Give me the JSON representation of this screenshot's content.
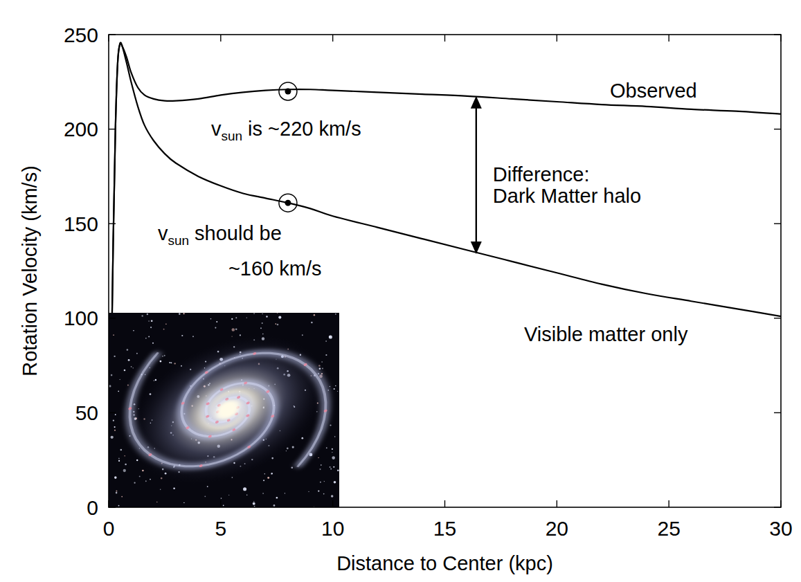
{
  "chart_data": {
    "type": "line",
    "x": [
      0,
      0.1,
      0.2,
      0.3,
      0.4,
      0.5,
      0.6,
      0.8,
      1.0,
      1.3,
      1.6,
      2.0,
      2.5,
      3,
      4,
      5,
      6,
      7,
      8,
      9,
      10,
      12,
      14,
      16,
      18,
      20,
      22,
      24,
      26,
      28,
      30
    ],
    "series": [
      {
        "name": "Observed",
        "color": "#000000",
        "values": [
          0,
          60,
          140,
          200,
          235,
          245,
          244,
          238,
          230,
          222,
          218,
          216,
          215,
          215,
          216,
          218,
          219.5,
          220.5,
          221,
          221,
          220.5,
          219.5,
          218.5,
          217.5,
          216,
          214.5,
          213,
          212,
          210.5,
          209.5,
          208
        ]
      },
      {
        "name": "Visible matter only",
        "color": "#000000",
        "values": [
          0,
          60,
          140,
          200,
          235,
          245,
          244,
          235,
          225,
          212,
          202,
          194,
          187,
          182,
          175,
          170,
          166,
          163.5,
          161,
          158,
          154,
          148,
          142,
          136,
          130,
          124,
          118,
          113,
          109,
          105,
          101
        ]
      }
    ],
    "xlabel": "Distance to Center (kpc)",
    "ylabel": "Rotation Velocity (km/s)",
    "xlim": [
      0,
      30
    ],
    "ylim": [
      0,
      250
    ],
    "xticks": [
      0,
      5,
      10,
      15,
      20,
      25,
      30
    ],
    "yticks": [
      0,
      50,
      100,
      150,
      200,
      250
    ],
    "grid": false,
    "annotations": [
      {
        "symbol": "v",
        "subscript": "sun",
        "lines": [
          "is ~220 km/s"
        ],
        "x": 8,
        "y": 220
      },
      {
        "symbol": "v",
        "subscript": "sun",
        "lines": [
          "should be",
          "~160 km/s"
        ],
        "x": 8,
        "y": 161
      },
      {
        "lines": [
          "Difference:",
          "Dark Matter halo"
        ],
        "x": 16.4,
        "y": [
          217.5,
          134
        ]
      }
    ]
  }
}
